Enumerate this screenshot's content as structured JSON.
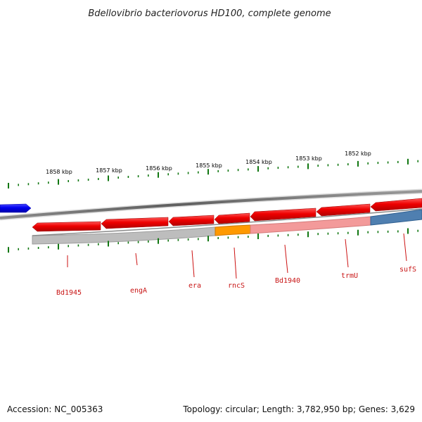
{
  "title": "Bdellovibrio bacteriovorus HD100, complete genome",
  "footer": {
    "accession": "Accession: NC_005363",
    "summary": "Topology: circular; Length: 3,782,950 bp; Genes: 3,629"
  },
  "scale_labels": [
    "1858 kbp",
    "1857 kbp",
    "1856 kbp",
    "1855 kbp",
    "1854 kbp",
    "1853 kbp",
    "1852 kbp"
  ],
  "genes": [
    {
      "name": "Bd1945"
    },
    {
      "name": "engA"
    },
    {
      "name": "era"
    },
    {
      "name": "rncS"
    },
    {
      "name": "Bd1940"
    },
    {
      "name": "trmU"
    },
    {
      "name": "sufS"
    }
  ],
  "colors": {
    "gene_forward_fill": "#0a0ae6",
    "gene_reverse_fill": "#e60808",
    "gene_highlight_light": "#ff8080",
    "label_color": "#c81414",
    "tick_color": "#117711",
    "backbone": "#777777",
    "band_gray": "#b9b9b9",
    "band_orange": "#ff9900",
    "band_pink": "#f59090",
    "band_blue": "#4f7fb0"
  }
}
